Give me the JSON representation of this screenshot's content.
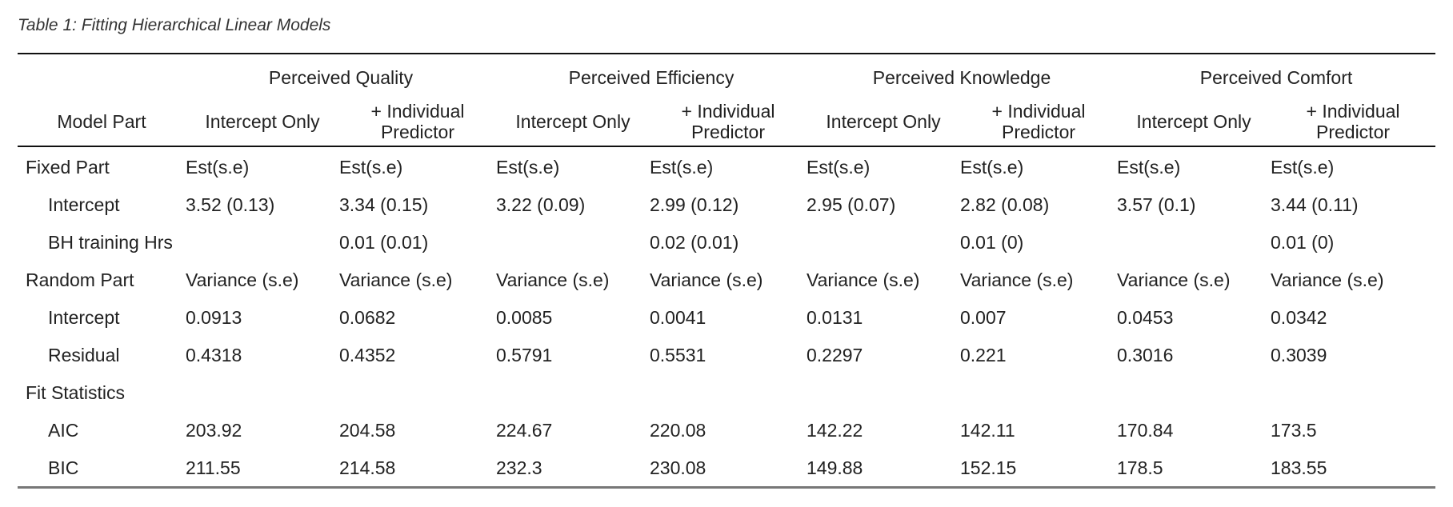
{
  "caption": "Table 1: Fitting Hierarchical Linear Models",
  "header": {
    "model_part": "Model Part",
    "groups": [
      "Perceived Quality",
      "Perceived Efficiency",
      "Perceived Knowledge",
      "Perceived Comfort"
    ],
    "sub_intercept": "Intercept Only",
    "sub_predictor": "+ Individual Predictor"
  },
  "rows": [
    {
      "label": "Fixed Part",
      "indent": false,
      "cells": [
        "Est(s.e)",
        "Est(s.e)",
        "Est(s.e)",
        "Est(s.e)",
        "Est(s.e)",
        "Est(s.e)",
        "Est(s.e)",
        "Est(s.e)"
      ]
    },
    {
      "label": "Intercept",
      "indent": true,
      "cells": [
        "3.52 (0.13)",
        "3.34 (0.15)",
        "3.22 (0.09)",
        "2.99 (0.12)",
        "2.95 (0.07)",
        "2.82 (0.08)",
        "3.57 (0.1)",
        "3.44 (0.11)"
      ]
    },
    {
      "label": "BH training Hrs",
      "indent": true,
      "cells": [
        "",
        "0.01 (0.01)",
        "",
        "0.02 (0.01)",
        "",
        "0.01 (0)",
        "",
        "0.01 (0)"
      ]
    },
    {
      "label": "Random Part",
      "indent": false,
      "cells": [
        "Variance (s.e)",
        "Variance (s.e)",
        "Variance (s.e)",
        "Variance (s.e)",
        "Variance (s.e)",
        "Variance (s.e)",
        "Variance (s.e)",
        "Variance (s.e)"
      ]
    },
    {
      "label": "Intercept",
      "indent": true,
      "cells": [
        "0.0913",
        "0.0682",
        "0.0085",
        "0.0041",
        "0.0131",
        "0.007",
        "0.0453",
        "0.0342"
      ]
    },
    {
      "label": "Residual",
      "indent": true,
      "cells": [
        "0.4318",
        "0.4352",
        "0.5791",
        "0.5531",
        "0.2297",
        "0.221",
        "0.3016",
        "0.3039"
      ]
    },
    {
      "label": "Fit Statistics",
      "indent": false,
      "cells": [
        "",
        "",
        "",
        "",
        "",
        "",
        "",
        ""
      ]
    },
    {
      "label": "AIC",
      "indent": true,
      "cells": [
        "203.92",
        "204.58",
        "224.67",
        "220.08",
        "142.22",
        "142.11",
        "170.84",
        "173.5"
      ]
    },
    {
      "label": "BIC",
      "indent": true,
      "cells": [
        "211.55",
        "214.58",
        "232.3",
        "230.08",
        "149.88",
        "152.15",
        "178.5",
        "183.55"
      ]
    }
  ]
}
